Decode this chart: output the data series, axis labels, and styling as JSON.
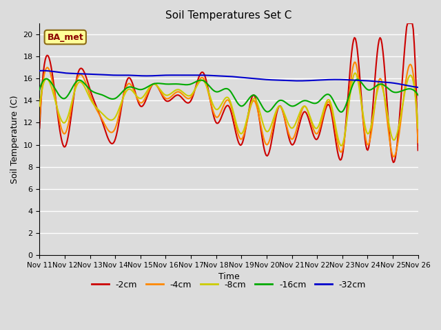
{
  "title": "Soil Temperatures Set C",
  "xlabel": "Time",
  "ylabel": "Soil Temperature (C)",
  "ylim": [
    0,
    21
  ],
  "yticks": [
    0,
    2,
    4,
    6,
    8,
    10,
    12,
    14,
    16,
    18,
    20
  ],
  "x_labels": [
    "Nov 11",
    "Nov 12",
    "Nov 13",
    "Nov 14",
    "Nov 15",
    "Nov 16",
    "Nov 17",
    "Nov 18",
    "Nov 19",
    "Nov 20",
    "Nov 21",
    "Nov 22",
    "Nov 23",
    "Nov 24",
    "Nov 25",
    "Nov 26"
  ],
  "background_color": "#dcdcdc",
  "plot_bg_color": "#dcdcdc",
  "line_colors": {
    "-2cm": "#cc0000",
    "-4cm": "#ff8800",
    "-8cm": "#cccc00",
    "-16cm": "#00aa00",
    "-32cm": "#0000cc"
  },
  "legend_label": "BA_met",
  "legend_box_color": "#ffff99",
  "legend_box_edge": "#8b6914",
  "figsize": [
    6.4,
    4.8
  ],
  "dpi": 100
}
